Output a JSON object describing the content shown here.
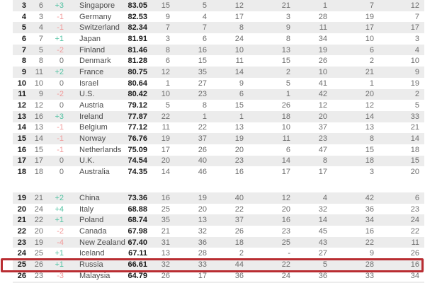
{
  "colors": {
    "positive_change": "#53c3a3",
    "negative_change": "#f19a9a",
    "neutral_text": "#6e6e6e",
    "country_text": "#4c4c4c",
    "strong_text": "#1a1a1a",
    "alt_row_bg": "#ececec",
    "highlight_box": "#b92d32"
  },
  "chart_data": {
    "type": "table",
    "columns": [
      "rank",
      "previous_rank",
      "rank_change",
      "country",
      "score",
      "stat_1",
      "stat_2",
      "stat_3",
      "stat_4",
      "stat_5",
      "stat_6",
      "stat_7"
    ],
    "highlight": {
      "country": "Russia",
      "rank": 25
    },
    "sections": [
      {
        "rows": [
          {
            "rank": 3,
            "prev": 6,
            "change": "+3",
            "country": "Singapore",
            "score": "83.05",
            "stats": [
              15,
              5,
              12,
              21,
              1,
              7,
              12
            ]
          },
          {
            "rank": 4,
            "prev": 3,
            "change": "-1",
            "country": "Germany",
            "score": "82.53",
            "stats": [
              9,
              4,
              17,
              3,
              28,
              19,
              7
            ]
          },
          {
            "rank": 5,
            "prev": 4,
            "change": "-1",
            "country": "Switzerland",
            "score": "82.34",
            "stats": [
              7,
              7,
              8,
              9,
              11,
              17,
              17
            ]
          },
          {
            "rank": 6,
            "prev": 7,
            "change": "+1",
            "country": "Japan",
            "score": "81.91",
            "stats": [
              3,
              6,
              24,
              8,
              34,
              10,
              3
            ]
          },
          {
            "rank": 7,
            "prev": 5,
            "change": "-2",
            "country": "Finland",
            "score": "81.46",
            "stats": [
              8,
              16,
              10,
              13,
              19,
              6,
              4
            ]
          },
          {
            "rank": 8,
            "prev": 8,
            "change": "0",
            "country": "Denmark",
            "score": "81.28",
            "stats": [
              6,
              15,
              11,
              15,
              26,
              2,
              10
            ]
          },
          {
            "rank": 9,
            "prev": 11,
            "change": "+2",
            "country": "France",
            "score": "80.75",
            "stats": [
              12,
              35,
              14,
              2,
              10,
              21,
              9
            ]
          },
          {
            "rank": 10,
            "prev": 10,
            "change": "0",
            "country": "Israel",
            "score": "80.64",
            "stats": [
              1,
              27,
              9,
              5,
              41,
              1,
              19
            ]
          },
          {
            "rank": 11,
            "prev": 9,
            "change": "-2",
            "country": "U.S.",
            "score": "80.42",
            "stats": [
              10,
              23,
              6,
              1,
              42,
              20,
              2
            ]
          },
          {
            "rank": 12,
            "prev": 12,
            "change": "0",
            "country": "Austria",
            "score": "79.12",
            "stats": [
              5,
              8,
              15,
              26,
              12,
              12,
              5
            ]
          },
          {
            "rank": 13,
            "prev": 16,
            "change": "+3",
            "country": "Ireland",
            "score": "77.87",
            "stats": [
              22,
              1,
              1,
              18,
              20,
              14,
              33
            ]
          },
          {
            "rank": 14,
            "prev": 13,
            "change": "-1",
            "country": "Belgium",
            "score": "77.12",
            "stats": [
              11,
              22,
              13,
              10,
              37,
              13,
              21
            ]
          },
          {
            "rank": 15,
            "prev": 14,
            "change": "-1",
            "country": "Norway",
            "score": "76.76",
            "stats": [
              19,
              37,
              19,
              11,
              23,
              8,
              14
            ]
          },
          {
            "rank": 16,
            "prev": 15,
            "change": "-1",
            "country": "Netherlands",
            "score": "75.09",
            "stats": [
              17,
              26,
              20,
              6,
              47,
              15,
              18
            ]
          },
          {
            "rank": 17,
            "prev": 17,
            "change": "0",
            "country": "U.K.",
            "score": "74.54",
            "stats": [
              20,
              40,
              23,
              14,
              8,
              18,
              15
            ]
          },
          {
            "rank": 18,
            "prev": 18,
            "change": "0",
            "country": "Australia",
            "score": "74.35",
            "stats": [
              14,
              46,
              16,
              17,
              17,
              3,
              20
            ]
          }
        ]
      },
      {
        "rows": [
          {
            "rank": 19,
            "prev": 21,
            "change": "+2",
            "country": "China",
            "score": "73.36",
            "stats": [
              16,
              19,
              40,
              12,
              4,
              42,
              6
            ]
          },
          {
            "rank": 20,
            "prev": 24,
            "change": "+4",
            "country": "Italy",
            "score": "68.88",
            "stats": [
              25,
              20,
              22,
              20,
              32,
              36,
              23
            ]
          },
          {
            "rank": 21,
            "prev": 22,
            "change": "+1",
            "country": "Poland",
            "score": "68.74",
            "stats": [
              35,
              13,
              37,
              16,
              14,
              34,
              24
            ]
          },
          {
            "rank": 22,
            "prev": 20,
            "change": "-2",
            "country": "Canada",
            "score": "67.98",
            "stats": [
              21,
              32,
              26,
              23,
              45,
              16,
              22
            ]
          },
          {
            "rank": 23,
            "prev": 19,
            "change": "-4",
            "country": "New Zealand",
            "score": "67.40",
            "stats": [
              31,
              36,
              18,
              25,
              43,
              22,
              11
            ]
          },
          {
            "rank": 24,
            "prev": 25,
            "change": "+1",
            "country": "Iceland",
            "score": "67.11",
            "stats": [
              13,
              28,
              2,
              "-",
              27,
              9,
              26
            ]
          },
          {
            "rank": 25,
            "prev": 26,
            "change": "+1",
            "country": "Russia",
            "score": "66.61",
            "stats": [
              32,
              33,
              44,
              22,
              5,
              28,
              16
            ]
          },
          {
            "rank": 26,
            "prev": 23,
            "change": "-3",
            "country": "Malaysia",
            "score": "64.79",
            "stats": [
              26,
              17,
              36,
              24,
              36,
              33,
              34
            ]
          }
        ]
      }
    ]
  }
}
